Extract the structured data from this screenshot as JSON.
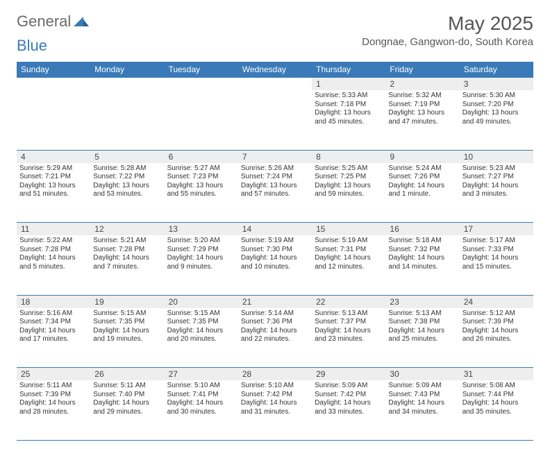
{
  "logo": {
    "general": "General",
    "blue": "Blue"
  },
  "title": {
    "month": "May 2025",
    "location": "Dongnae, Gangwon-do, South Korea"
  },
  "colors": {
    "header_bg": "#3a7ab8",
    "daynum_bg": "#eeeeee",
    "text": "#333333",
    "rule": "#3a7ab8"
  },
  "day_names": [
    "Sunday",
    "Monday",
    "Tuesday",
    "Wednesday",
    "Thursday",
    "Friday",
    "Saturday"
  ],
  "weeks": [
    [
      null,
      null,
      null,
      null,
      {
        "n": "1",
        "sunrise": "5:33 AM",
        "sunset": "7:18 PM",
        "daylight": "13 hours and 45 minutes."
      },
      {
        "n": "2",
        "sunrise": "5:32 AM",
        "sunset": "7:19 PM",
        "daylight": "13 hours and 47 minutes."
      },
      {
        "n": "3",
        "sunrise": "5:30 AM",
        "sunset": "7:20 PM",
        "daylight": "13 hours and 49 minutes."
      }
    ],
    [
      {
        "n": "4",
        "sunrise": "5:29 AM",
        "sunset": "7:21 PM",
        "daylight": "13 hours and 51 minutes."
      },
      {
        "n": "5",
        "sunrise": "5:28 AM",
        "sunset": "7:22 PM",
        "daylight": "13 hours and 53 minutes."
      },
      {
        "n": "6",
        "sunrise": "5:27 AM",
        "sunset": "7:23 PM",
        "daylight": "13 hours and 55 minutes."
      },
      {
        "n": "7",
        "sunrise": "5:26 AM",
        "sunset": "7:24 PM",
        "daylight": "13 hours and 57 minutes."
      },
      {
        "n": "8",
        "sunrise": "5:25 AM",
        "sunset": "7:25 PM",
        "daylight": "13 hours and 59 minutes."
      },
      {
        "n": "9",
        "sunrise": "5:24 AM",
        "sunset": "7:26 PM",
        "daylight": "14 hours and 1 minute."
      },
      {
        "n": "10",
        "sunrise": "5:23 AM",
        "sunset": "7:27 PM",
        "daylight": "14 hours and 3 minutes."
      }
    ],
    [
      {
        "n": "11",
        "sunrise": "5:22 AM",
        "sunset": "7:28 PM",
        "daylight": "14 hours and 5 minutes."
      },
      {
        "n": "12",
        "sunrise": "5:21 AM",
        "sunset": "7:28 PM",
        "daylight": "14 hours and 7 minutes."
      },
      {
        "n": "13",
        "sunrise": "5:20 AM",
        "sunset": "7:29 PM",
        "daylight": "14 hours and 9 minutes."
      },
      {
        "n": "14",
        "sunrise": "5:19 AM",
        "sunset": "7:30 PM",
        "daylight": "14 hours and 10 minutes."
      },
      {
        "n": "15",
        "sunrise": "5:19 AM",
        "sunset": "7:31 PM",
        "daylight": "14 hours and 12 minutes."
      },
      {
        "n": "16",
        "sunrise": "5:18 AM",
        "sunset": "7:32 PM",
        "daylight": "14 hours and 14 minutes."
      },
      {
        "n": "17",
        "sunrise": "5:17 AM",
        "sunset": "7:33 PM",
        "daylight": "14 hours and 15 minutes."
      }
    ],
    [
      {
        "n": "18",
        "sunrise": "5:16 AM",
        "sunset": "7:34 PM",
        "daylight": "14 hours and 17 minutes."
      },
      {
        "n": "19",
        "sunrise": "5:15 AM",
        "sunset": "7:35 PM",
        "daylight": "14 hours and 19 minutes."
      },
      {
        "n": "20",
        "sunrise": "5:15 AM",
        "sunset": "7:35 PM",
        "daylight": "14 hours and 20 minutes."
      },
      {
        "n": "21",
        "sunrise": "5:14 AM",
        "sunset": "7:36 PM",
        "daylight": "14 hours and 22 minutes."
      },
      {
        "n": "22",
        "sunrise": "5:13 AM",
        "sunset": "7:37 PM",
        "daylight": "14 hours and 23 minutes."
      },
      {
        "n": "23",
        "sunrise": "5:13 AM",
        "sunset": "7:38 PM",
        "daylight": "14 hours and 25 minutes."
      },
      {
        "n": "24",
        "sunrise": "5:12 AM",
        "sunset": "7:39 PM",
        "daylight": "14 hours and 26 minutes."
      }
    ],
    [
      {
        "n": "25",
        "sunrise": "5:11 AM",
        "sunset": "7:39 PM",
        "daylight": "14 hours and 28 minutes."
      },
      {
        "n": "26",
        "sunrise": "5:11 AM",
        "sunset": "7:40 PM",
        "daylight": "14 hours and 29 minutes."
      },
      {
        "n": "27",
        "sunrise": "5:10 AM",
        "sunset": "7:41 PM",
        "daylight": "14 hours and 30 minutes."
      },
      {
        "n": "28",
        "sunrise": "5:10 AM",
        "sunset": "7:42 PM",
        "daylight": "14 hours and 31 minutes."
      },
      {
        "n": "29",
        "sunrise": "5:09 AM",
        "sunset": "7:42 PM",
        "daylight": "14 hours and 33 minutes."
      },
      {
        "n": "30",
        "sunrise": "5:09 AM",
        "sunset": "7:43 PM",
        "daylight": "14 hours and 34 minutes."
      },
      {
        "n": "31",
        "sunrise": "5:08 AM",
        "sunset": "7:44 PM",
        "daylight": "14 hours and 35 minutes."
      }
    ]
  ],
  "labels": {
    "sunrise": "Sunrise:",
    "sunset": "Sunset:",
    "daylight": "Daylight:"
  }
}
